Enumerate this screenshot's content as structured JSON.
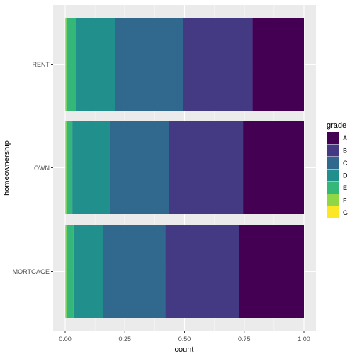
{
  "chart_data": {
    "type": "bar",
    "orientation": "horizontal",
    "stacked": "fill",
    "xlabel": "count",
    "ylabel": "homeownership",
    "xlim": [
      0,
      1
    ],
    "x_ticks": [
      {
        "value": 0,
        "label": "0.00"
      },
      {
        "value": 0.25,
        "label": "0.25"
      },
      {
        "value": 0.5,
        "label": "0.50"
      },
      {
        "value": 0.75,
        "label": "0.75"
      },
      {
        "value": 1,
        "label": "1.00"
      }
    ],
    "grid": true,
    "legend_position": "right",
    "legend_title": "grade",
    "categories": [
      "MORTGAGE",
      "OWN",
      "RENT"
    ],
    "series": [
      {
        "name": "A",
        "color": "#440154",
        "values": [
          0.27,
          0.255,
          0.215
        ]
      },
      {
        "name": "B",
        "color": "#443A83",
        "values": [
          0.31,
          0.31,
          0.29
        ]
      },
      {
        "name": "C",
        "color": "#31688E",
        "values": [
          0.26,
          0.25,
          0.285
        ]
      },
      {
        "name": "D",
        "color": "#21908C",
        "values": [
          0.125,
          0.155,
          0.165
        ]
      },
      {
        "name": "E",
        "color": "#35B779",
        "values": [
          0.03,
          0.025,
          0.04
        ]
      },
      {
        "name": "F",
        "color": "#8FD744",
        "values": [
          0.004,
          0.004,
          0.004
        ]
      },
      {
        "name": "G",
        "color": "#FDE725",
        "values": [
          0.001,
          0.001,
          0.001
        ]
      }
    ]
  }
}
